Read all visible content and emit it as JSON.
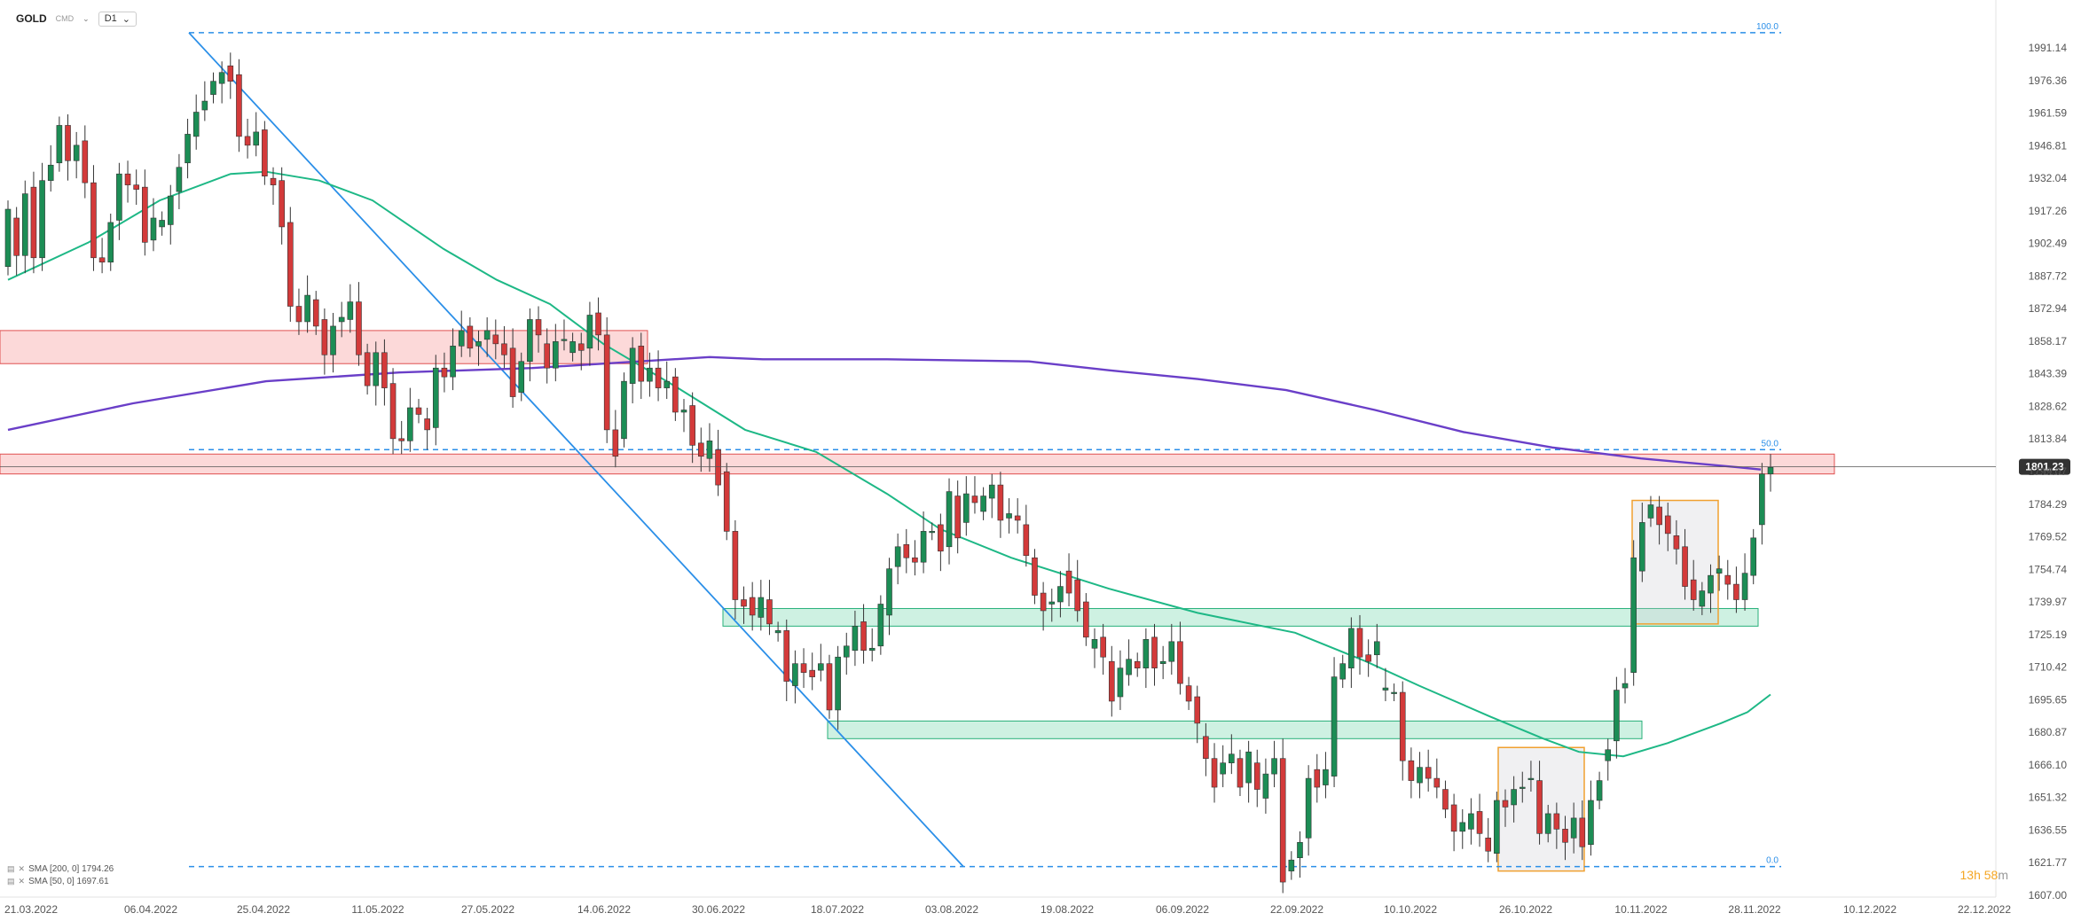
{
  "header": {
    "symbol": "GOLD",
    "sub": "CMD",
    "timeframe": "D1",
    "chevron": "⌄"
  },
  "legend": [
    {
      "text": "SMA [200, 0] 1794.26"
    },
    {
      "text": "SMA [50, 0] 1697.61"
    }
  ],
  "timer": {
    "main": "13h 58",
    "unit": "m"
  },
  "chart_data": {
    "type": "candlestick",
    "symbol": "GOLD",
    "timeframe": "D1",
    "last_price": "1801.23",
    "ylim": [
      1607.0,
      2006.0
    ],
    "y_ticks": [
      "1991.14",
      "1976.36",
      "1961.59",
      "1946.81",
      "1932.04",
      "1917.26",
      "1902.49",
      "1887.72",
      "1872.94",
      "1858.17",
      "1843.39",
      "1828.62",
      "1813.84",
      "1799.07",
      "1784.29",
      "1769.52",
      "1754.74",
      "1739.97",
      "1725.19",
      "1710.42",
      "1695.65",
      "1680.87",
      "1666.10",
      "1651.32",
      "1636.55",
      "1621.77",
      "1607.00"
    ],
    "x_ticks": [
      "21.03.2022",
      "06.04.2022",
      "25.04.2022",
      "11.05.2022",
      "27.05.2022",
      "14.06.2022",
      "30.06.2022",
      "18.07.2022",
      "03.08.2022",
      "19.08.2022",
      "06.09.2022",
      "22.09.2022",
      "10.10.2022",
      "26.10.2022",
      "10.11.2022",
      "28.11.2022",
      "10.12.2022",
      "22.12.2022"
    ],
    "fib_levels": [
      {
        "label": "100.0",
        "price": 1998.0
      },
      {
        "label": "50.0",
        "price": 1809.0
      },
      {
        "label": "0.0",
        "price": 1620.0
      }
    ],
    "sma200_label": "SMA [200, 0] 1794.26",
    "sma50_label": "SMA [50, 0] 1697.61",
    "timer": "13h 58m",
    "candles": [
      [
        1892,
        1918
      ],
      [
        1914,
        1897
      ],
      [
        1897,
        1925
      ],
      [
        1928,
        1896
      ],
      [
        1896,
        1931
      ],
      [
        1931,
        1938
      ],
      [
        1939,
        1956
      ],
      [
        1956,
        1940
      ],
      [
        1940,
        1947
      ],
      [
        1949,
        1930
      ],
      [
        1930,
        1896
      ],
      [
        1896,
        1894
      ],
      [
        1894,
        1912
      ],
      [
        1913,
        1934
      ],
      [
        1934,
        1929
      ],
      [
        1929,
        1927
      ],
      [
        1928,
        1903
      ],
      [
        1904,
        1914
      ],
      [
        1910,
        1913
      ],
      [
        1911,
        1924
      ],
      [
        1926,
        1937
      ],
      [
        1939,
        1952
      ],
      [
        1951,
        1962
      ],
      [
        1963,
        1967
      ],
      [
        1970,
        1976
      ],
      [
        1975,
        1980
      ],
      [
        1983,
        1976
      ],
      [
        1979,
        1951
      ],
      [
        1951,
        1947
      ],
      [
        1947,
        1953
      ],
      [
        1954,
        1933
      ],
      [
        1932,
        1929
      ],
      [
        1931,
        1910
      ],
      [
        1912,
        1874
      ],
      [
        1874,
        1867
      ],
      [
        1867,
        1879
      ],
      [
        1877,
        1865
      ],
      [
        1868,
        1852
      ],
      [
        1852,
        1865
      ],
      [
        1867,
        1869
      ],
      [
        1868,
        1876
      ],
      [
        1876,
        1852
      ],
      [
        1853,
        1838
      ],
      [
        1838,
        1853
      ],
      [
        1853,
        1837
      ],
      [
        1839,
        1814
      ],
      [
        1814,
        1813
      ],
      [
        1813,
        1828
      ],
      [
        1828,
        1825
      ],
      [
        1823,
        1818
      ],
      [
        1819,
        1846
      ],
      [
        1846,
        1842
      ],
      [
        1842,
        1856
      ],
      [
        1856,
        1863
      ],
      [
        1865,
        1855
      ],
      [
        1856,
        1858
      ],
      [
        1859,
        1863
      ],
      [
        1861,
        1857
      ],
      [
        1857,
        1852
      ],
      [
        1855,
        1833
      ],
      [
        1835,
        1849
      ],
      [
        1849,
        1868
      ],
      [
        1868,
        1861
      ],
      [
        1857,
        1846
      ],
      [
        1846,
        1858
      ],
      [
        1859,
        1859
      ],
      [
        1853,
        1858
      ],
      [
        1857,
        1854
      ],
      [
        1855,
        1870
      ],
      [
        1871,
        1861
      ],
      [
        1861,
        1818
      ],
      [
        1818,
        1806
      ],
      [
        1814,
        1840
      ],
      [
        1839,
        1855
      ],
      [
        1856,
        1840
      ],
      [
        1840,
        1846
      ],
      [
        1846,
        1837
      ],
      [
        1837,
        1840
      ],
      [
        1842,
        1826
      ],
      [
        1826,
        1827
      ],
      [
        1829,
        1811
      ],
      [
        1812,
        1806
      ],
      [
        1805,
        1813
      ],
      [
        1809,
        1793
      ],
      [
        1799,
        1772
      ],
      [
        1772,
        1741
      ],
      [
        1741,
        1738
      ],
      [
        1742,
        1734
      ],
      [
        1733,
        1742
      ],
      [
        1741,
        1730
      ],
      [
        1726,
        1727
      ],
      [
        1727,
        1704
      ],
      [
        1702,
        1712
      ],
      [
        1712,
        1708
      ],
      [
        1709,
        1706
      ],
      [
        1709,
        1712
      ],
      [
        1712,
        1691
      ],
      [
        1691,
        1715
      ],
      [
        1715,
        1720
      ],
      [
        1718,
        1729
      ],
      [
        1731,
        1718
      ],
      [
        1718,
        1719
      ],
      [
        1720,
        1739
      ],
      [
        1734,
        1755
      ],
      [
        1756,
        1765
      ],
      [
        1766,
        1760
      ],
      [
        1760,
        1758
      ],
      [
        1758,
        1772
      ],
      [
        1772,
        1772
      ],
      [
        1775,
        1763
      ],
      [
        1765,
        1790
      ],
      [
        1788,
        1769
      ],
      [
        1776,
        1789
      ],
      [
        1788,
        1785
      ],
      [
        1781,
        1788
      ],
      [
        1787,
        1793
      ],
      [
        1793,
        1777
      ],
      [
        1778,
        1780
      ],
      [
        1779,
        1777
      ],
      [
        1775,
        1761
      ],
      [
        1760,
        1743
      ],
      [
        1744,
        1736
      ],
      [
        1739,
        1740
      ],
      [
        1740,
        1747
      ],
      [
        1754,
        1744
      ],
      [
        1750,
        1736
      ],
      [
        1740,
        1724
      ],
      [
        1719,
        1723
      ],
      [
        1724,
        1715
      ],
      [
        1713,
        1695
      ],
      [
        1697,
        1710
      ],
      [
        1707,
        1714
      ],
      [
        1713,
        1710
      ],
      [
        1710,
        1723
      ],
      [
        1724,
        1710
      ],
      [
        1712,
        1713
      ],
      [
        1713,
        1722
      ],
      [
        1722,
        1703
      ],
      [
        1702,
        1695
      ],
      [
        1697,
        1685
      ],
      [
        1679,
        1669
      ],
      [
        1669,
        1656
      ],
      [
        1662,
        1667
      ],
      [
        1667,
        1671
      ],
      [
        1669,
        1656
      ],
      [
        1658,
        1672
      ],
      [
        1667,
        1655
      ],
      [
        1651,
        1662
      ],
      [
        1662,
        1669
      ],
      [
        1669,
        1613
      ],
      [
        1618,
        1623
      ],
      [
        1624,
        1631
      ],
      [
        1633,
        1660
      ],
      [
        1664,
        1656
      ],
      [
        1657,
        1664
      ],
      [
        1661,
        1706
      ],
      [
        1705,
        1712
      ],
      [
        1710,
        1728
      ],
      [
        1728,
        1715
      ],
      [
        1716,
        1713
      ],
      [
        1716,
        1722
      ],
      [
        1700,
        1701
      ],
      [
        1699,
        1699
      ],
      [
        1699,
        1668
      ],
      [
        1668,
        1659
      ],
      [
        1658,
        1665
      ],
      [
        1665,
        1660
      ],
      [
        1660,
        1656
      ],
      [
        1655,
        1646
      ],
      [
        1648,
        1636
      ],
      [
        1636,
        1640
      ],
      [
        1637,
        1644
      ],
      [
        1645,
        1635
      ],
      [
        1633,
        1627
      ],
      [
        1626,
        1650
      ],
      [
        1650,
        1647
      ],
      [
        1648,
        1655
      ],
      [
        1656,
        1656
      ],
      [
        1660,
        1660
      ],
      [
        1659,
        1635
      ],
      [
        1635,
        1644
      ],
      [
        1644,
        1637
      ],
      [
        1637,
        1631
      ],
      [
        1633,
        1642
      ],
      [
        1642,
        1629
      ],
      [
        1630,
        1650
      ],
      [
        1650,
        1659
      ],
      [
        1668,
        1673
      ],
      [
        1677,
        1700
      ],
      [
        1701,
        1703
      ],
      [
        1708,
        1760
      ],
      [
        1754,
        1776
      ],
      [
        1778,
        1784
      ],
      [
        1783,
        1775
      ],
      [
        1779,
        1771
      ],
      [
        1770,
        1764
      ],
      [
        1765,
        1747
      ],
      [
        1750,
        1741
      ],
      [
        1738,
        1745
      ],
      [
        1744,
        1752
      ],
      [
        1753,
        1755
      ],
      [
        1752,
        1748
      ],
      [
        1748,
        1741
      ],
      [
        1741,
        1753
      ],
      [
        1752,
        1769
      ],
      [
        1775,
        1798
      ],
      [
        1798,
        1801
      ]
    ]
  }
}
